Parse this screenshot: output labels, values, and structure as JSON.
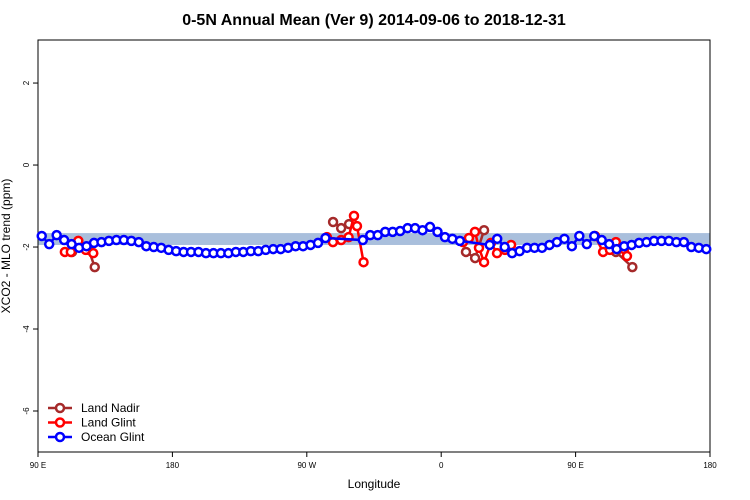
{
  "chart_data": {
    "type": "line",
    "title": "0-5N Annual Mean (Ver 9)   2014-09-06 to 2018-12-31",
    "xlabel": "Longitude",
    "ylabel": "XCO2 - MLO trend (ppm)",
    "xlim": [
      90,
      540
    ],
    "ylim": [
      -7,
      3.05
    ],
    "xticks": [
      {
        "value": 90,
        "label": "90 E"
      },
      {
        "value": 180,
        "label": "180"
      },
      {
        "value": 270,
        "label": "90 W"
      },
      {
        "value": 360,
        "label": "0"
      },
      {
        "value": 450,
        "label": "90 E"
      },
      {
        "value": 540,
        "label": "180"
      }
    ],
    "yticks": [
      2,
      0,
      -2,
      -4,
      -6
    ],
    "band": {
      "range": [
        -1.95,
        -1.66
      ],
      "color": "#a9bfdc"
    },
    "legend": "bottom-left",
    "series": [
      {
        "name": "Land Nadir",
        "color": "#a52a2a",
        "x": [
          112.8,
          124,
          128,
          null,
          287.6,
          293,
          298.3,
          null,
          376.6,
          382.7,
          388.7,
          null,
          477,
          488
        ],
        "values": [
          -2.12,
          -2.07,
          -2.49,
          null,
          -1.39,
          -1.54,
          -1.44,
          null,
          -2.12,
          -2.27,
          -1.59,
          null,
          -2.12,
          -2.49
        ]
      },
      {
        "name": "Land Glint",
        "color": "#ff0000",
        "x": [
          108,
          112,
          117,
          122,
          127,
          null,
          283.5,
          287.5,
          293,
          298,
          301.6,
          303.6,
          308,
          null,
          374.6,
          378.6,
          382.6,
          385.3,
          388.7,
          393.3,
          397.4,
          402.7,
          406.8,
          null,
          463,
          468.4,
          473,
          477,
          482.4,
          484.4
        ],
        "values": [
          -2.12,
          -2.12,
          -1.85,
          -2.07,
          -2.15,
          null,
          -1.76,
          -1.88,
          -1.83,
          -1.76,
          -1.24,
          -1.49,
          -2.37,
          null,
          -1.88,
          -1.78,
          -1.63,
          -2.02,
          -2.37,
          -1.9,
          -2.15,
          -2.07,
          -1.95,
          null,
          -1.73,
          -2.12,
          -2.07,
          -1.88,
          -2.05,
          -2.22
        ]
      },
      {
        "name": "Ocean Glint",
        "color": "#0000ff",
        "x": [
          92.5,
          97.5,
          102.5,
          107.5,
          112.5,
          117.5,
          122.5,
          127.5,
          132.5,
          137.5,
          142.5,
          147.5,
          152.5,
          157.5,
          162.5,
          167.5,
          172.5,
          177.5,
          182.5,
          187.5,
          192.5,
          197.5,
          202.5,
          207.5,
          212.5,
          217.5,
          222.5,
          227.5,
          232.5,
          237.5,
          242.5,
          247.5,
          252.5,
          257.5,
          262.5,
          267.5,
          272.5,
          277.5,
          282.5,
          307.5,
          312.5,
          317.5,
          322.5,
          327.5,
          332.5,
          337.5,
          342.5,
          347.5,
          352.5,
          357.5,
          362.5,
          367.5,
          372.5,
          392.5,
          397.5,
          402.5,
          407.5,
          412.5,
          417.5,
          422.5,
          427.5,
          432.5,
          437.5,
          442.5,
          447.5,
          452.5,
          457.5,
          462.5,
          467.5,
          472.5,
          477.5,
          482.5,
          487.5,
          492.5,
          497.5,
          502.5,
          507.5,
          512.5,
          517.5,
          522.5,
          527.5,
          532.5,
          537.5
        ],
        "values": [
          -1.73,
          -1.93,
          -1.71,
          -1.83,
          -1.93,
          -2.02,
          -1.98,
          -1.9,
          -1.88,
          -1.85,
          -1.83,
          -1.83,
          -1.85,
          -1.88,
          -1.98,
          -2.0,
          -2.02,
          -2.07,
          -2.1,
          -2.12,
          -2.12,
          -2.12,
          -2.15,
          -2.15,
          -2.15,
          -2.15,
          -2.12,
          -2.12,
          -2.1,
          -2.1,
          -2.07,
          -2.05,
          -2.05,
          -2.02,
          -1.98,
          -1.98,
          -1.95,
          -1.9,
          -1.78,
          -1.83,
          -1.71,
          -1.71,
          -1.63,
          -1.63,
          -1.61,
          -1.54,
          -1.54,
          -1.59,
          -1.51,
          -1.63,
          -1.76,
          -1.8,
          -1.85,
          -1.95,
          -1.8,
          -2.0,
          -2.15,
          -2.1,
          -2.02,
          -2.02,
          -2.02,
          -1.95,
          -1.88,
          -1.8,
          -1.98,
          -1.73,
          -1.93,
          -1.73,
          -1.83,
          -1.93,
          -2.05,
          -1.98,
          -1.95,
          -1.9,
          -1.88,
          -1.85,
          -1.85,
          -1.85,
          -1.88,
          -1.88,
          -2.0,
          -2.02,
          -2.05
        ]
      }
    ]
  }
}
